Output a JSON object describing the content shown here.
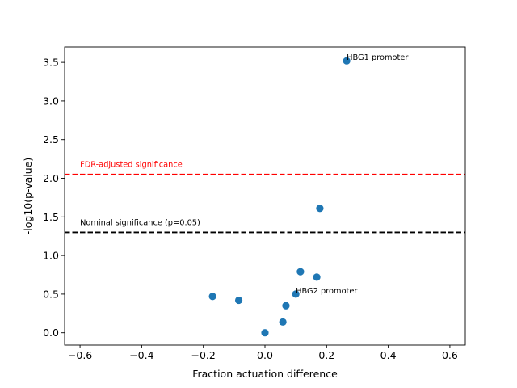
{
  "chart_data": {
    "type": "scatter",
    "title": "",
    "xlabel": "Fraction actuation difference",
    "ylabel": "-log10(p-value)",
    "xlim": [
      -0.65,
      0.65
    ],
    "ylim": [
      -0.16,
      3.7
    ],
    "xticks": [
      -0.6,
      -0.4,
      -0.2,
      0.0,
      0.2,
      0.4,
      0.6
    ],
    "xtick_labels": [
      "−0.6",
      "−0.4",
      "−0.2",
      "0.0",
      "0.2",
      "0.4",
      "0.6"
    ],
    "yticks": [
      0.0,
      0.5,
      1.0,
      1.5,
      2.0,
      2.5,
      3.0,
      3.5
    ],
    "ytick_labels": [
      "0.0",
      "0.5",
      "1.0",
      "1.5",
      "2.0",
      "2.5",
      "3.0",
      "3.5"
    ],
    "grid": false,
    "point_color": "#1f77b4",
    "points": [
      {
        "x": 0.265,
        "y": 3.52
      },
      {
        "x": 0.178,
        "y": 1.61
      },
      {
        "x": 0.115,
        "y": 0.79
      },
      {
        "x": 0.168,
        "y": 0.72
      },
      {
        "x": 0.1,
        "y": 0.5
      },
      {
        "x": -0.17,
        "y": 0.47
      },
      {
        "x": -0.085,
        "y": 0.42
      },
      {
        "x": 0.068,
        "y": 0.35
      },
      {
        "x": 0.058,
        "y": 0.14
      },
      {
        "x": 0.0,
        "y": 0.0
      }
    ],
    "point_annotations": [
      {
        "text": "HBG1 promoter",
        "x": 0.265,
        "y": 3.52
      },
      {
        "text": "HBG2 promoter",
        "x": 0.1,
        "y": 0.5
      }
    ],
    "reference_lines": [
      {
        "y": 2.05,
        "color": "#ff0000",
        "label": "FDR-adjusted significance",
        "label_x": -0.6
      },
      {
        "y": 1.3,
        "color": "#000000",
        "label": "Nominal significance (p=0.05)",
        "label_x": -0.6
      }
    ]
  }
}
